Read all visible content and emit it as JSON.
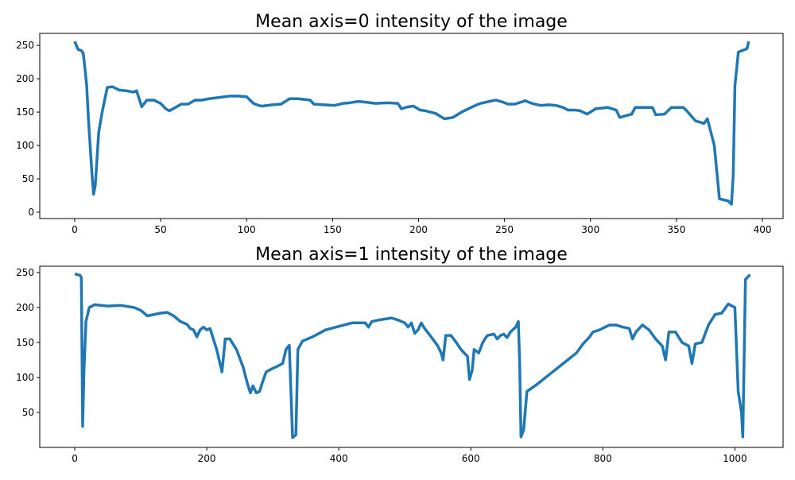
{
  "chart_data": [
    {
      "type": "line",
      "title": "Mean axis=0 intensity of the image",
      "color": "#1f77b4",
      "x": [
        0,
        2,
        4,
        5,
        6,
        7,
        8,
        9,
        10,
        11,
        12,
        13,
        14,
        16,
        18,
        19,
        22,
        26,
        30,
        34,
        36,
        39,
        42,
        46,
        50,
        53,
        55,
        58,
        62,
        66,
        70,
        74,
        78,
        84,
        90,
        95,
        100,
        104,
        107,
        109,
        115,
        120,
        125,
        130,
        137,
        139,
        145,
        151,
        156,
        160,
        165,
        169,
        175,
        182,
        188,
        190,
        194,
        197,
        201,
        204,
        210,
        215,
        220,
        225,
        229,
        233,
        236,
        241,
        245,
        249,
        252,
        256,
        262,
        266,
        271,
        276,
        280,
        284,
        287,
        291,
        294,
        298,
        303,
        310,
        315,
        317,
        321,
        324,
        326,
        331,
        336,
        338,
        343,
        347,
        354,
        356,
        361,
        366,
        368,
        372,
        375,
        380,
        382,
        383,
        384,
        386,
        391,
        392
      ],
      "values": [
        256,
        244,
        242,
        238,
        215,
        190,
        140,
        100,
        60,
        27,
        40,
        80,
        120,
        150,
        175,
        187,
        188,
        183,
        182,
        180,
        182,
        158,
        168,
        168,
        163,
        155,
        152,
        156,
        162,
        162,
        168,
        168,
        170,
        172,
        174,
        174,
        173,
        163,
        160,
        159,
        161,
        162,
        170,
        170,
        168,
        162,
        161,
        160,
        163,
        164,
        166,
        165,
        163,
        164,
        163,
        155,
        158,
        159,
        153,
        152,
        148,
        140,
        142,
        150,
        155,
        160,
        163,
        166,
        168,
        165,
        162,
        162,
        167,
        163,
        160,
        161,
        160,
        157,
        153,
        153,
        152,
        147,
        155,
        157,
        153,
        142,
        145,
        147,
        157,
        157,
        157,
        146,
        147,
        157,
        157,
        152,
        137,
        133,
        140,
        100,
        20,
        17,
        12,
        55,
        190,
        240,
        245,
        256
      ],
      "xlim": [
        -20.3,
        412
      ],
      "ylim": [
        -9.5,
        268
      ],
      "xticks": [
        0,
        50,
        100,
        150,
        200,
        250,
        300,
        350,
        400
      ],
      "yticks": [
        0,
        50,
        100,
        150,
        200,
        250
      ]
    },
    {
      "type": "line",
      "title": "Mean axis=1 intensity of the image",
      "color": "#1f77b4",
      "x": [
        0,
        8,
        10,
        12,
        14,
        17,
        22,
        30,
        50,
        70,
        90,
        100,
        110,
        130,
        140,
        150,
        160,
        170,
        175,
        180,
        185,
        190,
        195,
        200,
        205,
        210,
        215,
        220,
        223,
        228,
        235,
        245,
        255,
        262,
        266,
        270,
        275,
        280,
        285,
        290,
        300,
        305,
        315,
        320,
        325,
        330,
        335,
        338,
        345,
        360,
        380,
        400,
        420,
        440,
        445,
        450,
        460,
        480,
        490,
        500,
        505,
        510,
        515,
        520,
        525,
        530,
        540,
        550,
        555,
        558,
        562,
        570,
        578,
        585,
        595,
        598,
        602,
        605,
        612,
        618,
        625,
        635,
        640,
        645,
        650,
        655,
        660,
        668,
        672,
        674,
        676,
        680,
        685,
        700,
        720,
        740,
        760,
        770,
        780,
        785,
        795,
        810,
        820,
        830,
        840,
        845,
        850,
        860,
        870,
        880,
        890,
        895,
        900,
        910,
        920,
        930,
        935,
        940,
        950,
        960,
        970,
        980,
        990,
        1000,
        1005,
        1010,
        1012,
        1016,
        1023
      ],
      "values": [
        248,
        246,
        243,
        30,
        110,
        180,
        200,
        204,
        202,
        203,
        200,
        196,
        188,
        192,
        193,
        188,
        180,
        176,
        170,
        168,
        158,
        168,
        172,
        168,
        170,
        155,
        140,
        120,
        108,
        155,
        155,
        140,
        115,
        90,
        78,
        88,
        78,
        80,
        95,
        108,
        113,
        115,
        120,
        140,
        146,
        14,
        18,
        140,
        152,
        158,
        168,
        173,
        178,
        178,
        172,
        180,
        182,
        185,
        182,
        178,
        172,
        178,
        163,
        168,
        178,
        170,
        158,
        145,
        135,
        125,
        160,
        160,
        150,
        140,
        130,
        97,
        110,
        140,
        135,
        150,
        160,
        162,
        155,
        160,
        162,
        157,
        165,
        172,
        180,
        120,
        15,
        25,
        80,
        90,
        105,
        120,
        135,
        148,
        158,
        165,
        168,
        175,
        175,
        172,
        170,
        155,
        165,
        175,
        168,
        155,
        145,
        125,
        165,
        165,
        150,
        145,
        120,
        148,
        150,
        175,
        190,
        192,
        205,
        200,
        80,
        50,
        15,
        240,
        247
      ],
      "xlim": [
        -53,
        1073
      ],
      "ylim": [
        0,
        259
      ],
      "xticks": [
        0,
        200,
        400,
        600,
        800,
        1000
      ],
      "yticks": [
        50,
        100,
        150,
        200,
        250
      ]
    }
  ]
}
